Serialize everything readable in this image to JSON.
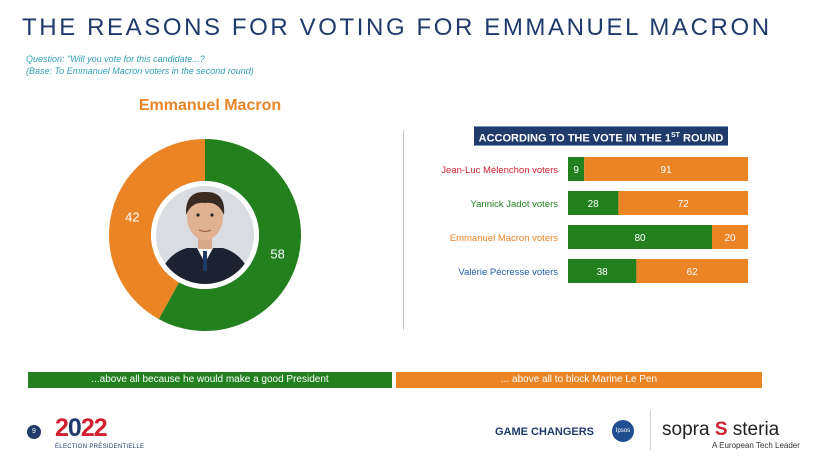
{
  "title": "THE REASONS FOR VOTING FOR EMMANUEL MACRON",
  "question": "Question: \"Will you vote for this candidate...?",
  "base": "(Base: To Emmanuel Macron voters in the second round)",
  "colors": {
    "green": "#23801f",
    "orange": "#ea8425",
    "navy": "#1f3a6b"
  },
  "chart_data": [
    {
      "type": "pie",
      "title": "Emmanuel Macron",
      "donut": true,
      "categories": [
        "...above all because he would make a good President",
        "... above all to block Marine Le Pen"
      ],
      "values": [
        58,
        42
      ],
      "colors": [
        "#23801f",
        "#ea8425"
      ]
    },
    {
      "type": "bar",
      "stacked": true,
      "orientation": "horizontal",
      "title": "ACCORDING TO THE VOTE IN THE 1",
      "title_sup": "ST",
      "title_end": " ROUND",
      "categories": [
        "Jean-Luc Mélenchon voters",
        "Yannick Jadot voters",
        "Emmanuel Macron voters",
        "Valérie Pécresse voters"
      ],
      "category_colors": [
        "#d1202f",
        "#23801f",
        "#ea8425",
        "#1f5fa8"
      ],
      "series": [
        {
          "values": [
            9,
            28,
            80,
            38
          ],
          "color": "#23801f"
        },
        {
          "values": [
            91,
            72,
            20,
            62
          ],
          "color": "#ea8425"
        }
      ]
    }
  ],
  "legend": {
    "left": "...above all because he would make a good President",
    "right": "... above all to block Marine Le Pen"
  },
  "footer": {
    "page": "9",
    "logo_left": "2",
    "logo_mid": "0",
    "logo_right": "22",
    "logo_sub": "ÉLECTION PRÉSIDENTIELLE",
    "game_changers": "GAME CHANGERS",
    "ipsos": "Ipsos",
    "sopra": "sopra",
    "steria": "steria",
    "tagline": "A European Tech Leader"
  }
}
